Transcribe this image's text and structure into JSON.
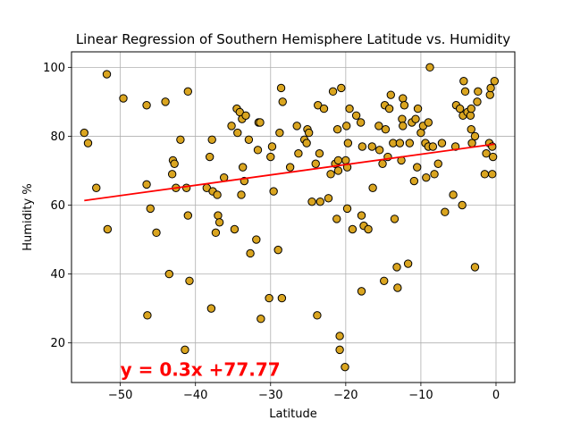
{
  "chart_data": {
    "type": "scatter",
    "title": "Linear Regression of Southern Hemisphere Latitude vs. Humidity",
    "xlabel": "Latitude",
    "ylabel": "Humidity %",
    "xlim": [
      -56.5,
      2.5
    ],
    "ylim": [
      8.5,
      104.5
    ],
    "xticks": [
      -50,
      -40,
      -30,
      -20,
      -10,
      0
    ],
    "yticks": [
      20,
      40,
      60,
      80,
      100
    ],
    "grid": true,
    "colors": {
      "point_fill": "#daa520",
      "point_edge": "#000000",
      "line": "#ff0000",
      "equation": "#ff0000"
    },
    "regression": {
      "slope": 0.3,
      "intercept": 77.77,
      "x_range": [
        -54.8,
        -0.2
      ]
    },
    "annotation": {
      "text": "y = 0.3x +77.77",
      "x": -50,
      "y": 10.5
    },
    "points": [
      [
        -54.8,
        81
      ],
      [
        -54.3,
        78
      ],
      [
        -53.2,
        65
      ],
      [
        -51.8,
        98
      ],
      [
        -51.7,
        53
      ],
      [
        -49.6,
        91
      ],
      [
        -46.5,
        89
      ],
      [
        -46.5,
        66
      ],
      [
        -46.4,
        28
      ],
      [
        -46.0,
        59
      ],
      [
        -45.2,
        52
      ],
      [
        -44.0,
        90
      ],
      [
        -43.5,
        40
      ],
      [
        -43.1,
        69
      ],
      [
        -43.0,
        73
      ],
      [
        -42.8,
        72
      ],
      [
        -42.6,
        65
      ],
      [
        -42.0,
        79
      ],
      [
        -41.4,
        18
      ],
      [
        -41.2,
        65
      ],
      [
        -41.0,
        57
      ],
      [
        -41.0,
        93
      ],
      [
        -40.8,
        38
      ],
      [
        -38.5,
        65
      ],
      [
        -38.1,
        74
      ],
      [
        -37.9,
        30
      ],
      [
        -37.8,
        79
      ],
      [
        -37.7,
        64
      ],
      [
        -37.3,
        52
      ],
      [
        -37.1,
        63
      ],
      [
        -37.0,
        57
      ],
      [
        -36.8,
        55
      ],
      [
        -36.2,
        68
      ],
      [
        -35.2,
        83
      ],
      [
        -34.8,
        53
      ],
      [
        -34.5,
        88
      ],
      [
        -34.4,
        81
      ],
      [
        -34.1,
        87
      ],
      [
        -33.9,
        63
      ],
      [
        -33.8,
        85
      ],
      [
        -33.7,
        71
      ],
      [
        -33.5,
        67
      ],
      [
        -33.3,
        86
      ],
      [
        -32.9,
        79
      ],
      [
        -32.7,
        46
      ],
      [
        -31.9,
        50
      ],
      [
        -31.7,
        76
      ],
      [
        -31.6,
        84
      ],
      [
        -31.4,
        84
      ],
      [
        -31.3,
        27
      ],
      [
        -30.2,
        33
      ],
      [
        -30.0,
        74
      ],
      [
        -29.8,
        77
      ],
      [
        -29.6,
        64
      ],
      [
        -29.0,
        47
      ],
      [
        -28.8,
        81
      ],
      [
        -28.6,
        94
      ],
      [
        -28.5,
        33
      ],
      [
        -28.4,
        90
      ],
      [
        -27.4,
        71
      ],
      [
        -26.5,
        83
      ],
      [
        -26.3,
        75
      ],
      [
        -25.5,
        79
      ],
      [
        -25.2,
        78
      ],
      [
        -25.1,
        82
      ],
      [
        -24.9,
        81
      ],
      [
        -24.5,
        61
      ],
      [
        -24.0,
        72
      ],
      [
        -23.8,
        28
      ],
      [
        -23.7,
        89
      ],
      [
        -23.5,
        75
      ],
      [
        -23.4,
        61
      ],
      [
        -22.9,
        88
      ],
      [
        -22.3,
        62
      ],
      [
        -22.0,
        69
      ],
      [
        -21.7,
        93
      ],
      [
        -21.4,
        72
      ],
      [
        -21.2,
        56
      ],
      [
        -21.1,
        82
      ],
      [
        -21.0,
        73
      ],
      [
        -21.0,
        70
      ],
      [
        -20.8,
        22
      ],
      [
        -20.8,
        18
      ],
      [
        -20.6,
        94
      ],
      [
        -20.1,
        13
      ],
      [
        -20.0,
        73
      ],
      [
        -19.9,
        83
      ],
      [
        -19.8,
        71
      ],
      [
        -19.8,
        59
      ],
      [
        -19.7,
        78
      ],
      [
        -19.5,
        88
      ],
      [
        -19.1,
        53
      ],
      [
        -18.6,
        86
      ],
      [
        -18.0,
        84
      ],
      [
        -17.9,
        35
      ],
      [
        -17.9,
        57
      ],
      [
        -17.8,
        77
      ],
      [
        -17.6,
        54
      ],
      [
        -17.0,
        53
      ],
      [
        -16.5,
        77
      ],
      [
        -16.4,
        65
      ],
      [
        -15.6,
        83
      ],
      [
        -15.5,
        76
      ],
      [
        -15.1,
        72
      ],
      [
        -14.9,
        38
      ],
      [
        -14.8,
        89
      ],
      [
        -14.7,
        82
      ],
      [
        -14.4,
        74
      ],
      [
        -14.2,
        88
      ],
      [
        -14.0,
        92
      ],
      [
        -13.7,
        78
      ],
      [
        -13.5,
        56
      ],
      [
        -13.2,
        42
      ],
      [
        -13.1,
        36
      ],
      [
        -12.8,
        78
      ],
      [
        -12.6,
        73
      ],
      [
        -12.5,
        85
      ],
      [
        -12.4,
        83
      ],
      [
        -12.4,
        91
      ],
      [
        -12.2,
        89
      ],
      [
        -11.7,
        43
      ],
      [
        -11.5,
        78
      ],
      [
        -11.2,
        84
      ],
      [
        -10.9,
        67
      ],
      [
        -10.7,
        85
      ],
      [
        -10.5,
        71
      ],
      [
        -10.4,
        88
      ],
      [
        -10.0,
        81
      ],
      [
        -9.7,
        83
      ],
      [
        -9.4,
        78
      ],
      [
        -9.3,
        68
      ],
      [
        -9.0,
        84
      ],
      [
        -9.0,
        77
      ],
      [
        -8.8,
        100
      ],
      [
        -8.4,
        77
      ],
      [
        -8.2,
        69
      ],
      [
        -7.7,
        72
      ],
      [
        -7.2,
        78
      ],
      [
        -6.8,
        58
      ],
      [
        -5.7,
        63
      ],
      [
        -5.4,
        77
      ],
      [
        -5.3,
        89
      ],
      [
        -4.8,
        88
      ],
      [
        -4.5,
        60
      ],
      [
        -4.4,
        86
      ],
      [
        -4.3,
        96
      ],
      [
        -4.1,
        93
      ],
      [
        -3.8,
        87
      ],
      [
        -3.4,
        86
      ],
      [
        -3.3,
        82
      ],
      [
        -3.3,
        88
      ],
      [
        -3.2,
        78
      ],
      [
        -2.8,
        80
      ],
      [
        -2.8,
        42
      ],
      [
        -2.4,
        93
      ],
      [
        -2.5,
        90
      ],
      [
        -1.5,
        69
      ],
      [
        -1.3,
        75
      ],
      [
        -0.9,
        78
      ],
      [
        -0.8,
        92
      ],
      [
        -0.7,
        94
      ],
      [
        -0.5,
        77
      ],
      [
        -0.5,
        69
      ],
      [
        -0.4,
        74
      ],
      [
        -0.2,
        96
      ]
    ]
  }
}
